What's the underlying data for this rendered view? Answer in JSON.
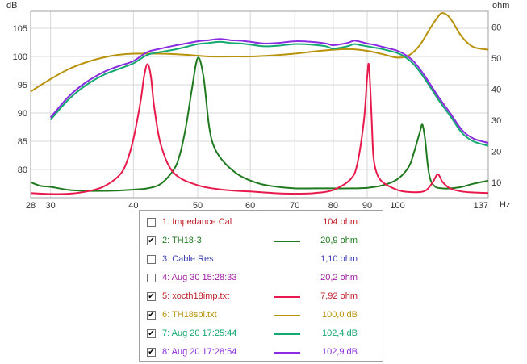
{
  "chart_data": {
    "type": "line",
    "x_scale": "log",
    "xlim": [
      28,
      137
    ],
    "ylim_left": [
      75,
      108
    ],
    "ylim_right": [
      5,
      65
    ],
    "left_unit": "dB",
    "right_unit": "ohm",
    "x_unit": "Hz",
    "x_ticks": [
      {
        "value": 28,
        "label": "28"
      },
      {
        "value": 30,
        "label": "30"
      },
      {
        "value": 40,
        "label": "40"
      },
      {
        "value": 50,
        "label": "50"
      },
      {
        "value": 60,
        "label": "60"
      },
      {
        "value": 70,
        "label": "70"
      },
      {
        "value": 80,
        "label": "80"
      },
      {
        "value": 90,
        "label": "90"
      },
      {
        "value": 100,
        "label": "100"
      },
      {
        "value": 137,
        "label": "137"
      }
    ],
    "y_ticks_left": [
      80,
      85,
      90,
      95,
      100,
      105
    ],
    "y_ticks_right": [
      10,
      20,
      30,
      40,
      50,
      60
    ],
    "grid": true,
    "series": [
      {
        "name": "TH18-3",
        "axis": "right",
        "color": "#1f7a1f",
        "x": [
          28,
          29,
          30,
          32,
          34,
          36,
          38,
          40,
          42,
          44,
          46,
          47,
          48,
          49,
          50,
          51,
          52,
          53,
          55,
          58,
          62,
          66,
          70,
          75,
          80,
          85,
          90,
          95,
          100,
          104,
          106,
          108,
          109,
          110,
          111,
          112,
          114,
          117,
          120,
          125,
          130,
          137
        ],
        "y": [
          10,
          8.8,
          8.5,
          7.5,
          7.2,
          7.2,
          7.3,
          7.6,
          8,
          9.5,
          14,
          19,
          28,
          40,
          50,
          44,
          28,
          21,
          16,
          12,
          9.5,
          8.5,
          8,
          8,
          8,
          8,
          8.2,
          9,
          11,
          15,
          20,
          26,
          28.5,
          24,
          16,
          11,
          8.5,
          8,
          8,
          8.5,
          9.5,
          10.5
        ]
      },
      {
        "name": "xocth18imp.txt",
        "axis": "right",
        "color": "#e8194b",
        "x": [
          28,
          30,
          32,
          34,
          36,
          38,
          39,
          40,
          41,
          41.5,
          42,
          42.5,
          43,
          44,
          46,
          50,
          55,
          60,
          65,
          70,
          75,
          80,
          85,
          87,
          89,
          90,
          90.5,
          91,
          91.5,
          92,
          93,
          95,
          100,
          105,
          110,
          113,
          115,
          117,
          120,
          125,
          130,
          137
        ],
        "y": [
          6.5,
          6.2,
          6.3,
          7,
          8.5,
          12,
          16,
          24,
          36,
          44,
          48,
          44,
          34,
          22,
          13,
          9,
          7.5,
          7,
          6.5,
          6.3,
          6.5,
          7.5,
          11,
          16,
          30,
          44,
          48,
          40,
          28,
          18,
          13,
          10,
          7.5,
          6.8,
          7.2,
          10,
          12.5,
          10,
          8,
          7,
          6.7,
          6.5
        ]
      },
      {
        "name": "TH18spl.txt",
        "axis": "left",
        "color": "#b8920a",
        "x": [
          28,
          30,
          32,
          34,
          36,
          38,
          40,
          44,
          48,
          52,
          56,
          60,
          65,
          70,
          75,
          80,
          85,
          90,
          95,
          100,
          104,
          108,
          112,
          115,
          117,
          120,
          125,
          130,
          137
        ],
        "y": [
          93.8,
          96,
          97.8,
          99,
          99.8,
          100.3,
          100.5,
          100.5,
          100.3,
          100,
          100,
          100,
          100.2,
          100.5,
          100.9,
          101.2,
          101.3,
          101,
          100.4,
          99.8,
          100.2,
          102,
          105,
          107,
          107.7,
          106.8,
          103.5,
          101.7,
          101.2
        ]
      },
      {
        "name": "Aug 20 17:25:44",
        "axis": "left",
        "color": "#15a870",
        "x": [
          30,
          32,
          34,
          36,
          38,
          40,
          42,
          44,
          46,
          48,
          50,
          52,
          54,
          56,
          58,
          60,
          63,
          66,
          70,
          74,
          78,
          80,
          84,
          86,
          88,
          90,
          92,
          95,
          100,
          103,
          106,
          110,
          115,
          120,
          125,
          130,
          137
        ],
        "y": [
          88.8,
          92.5,
          95,
          96.7,
          97.8,
          98.8,
          100.3,
          100.8,
          101.2,
          101.7,
          102.2,
          102.4,
          102.6,
          102.4,
          102.3,
          102.1,
          101.8,
          101.9,
          102.2,
          102.1,
          101.8,
          101.4,
          101.8,
          102.2,
          102,
          101.8,
          101.6,
          101.3,
          100.6,
          99.8,
          98.5,
          96,
          92.5,
          89.5,
          86.5,
          85,
          84.2
        ]
      },
      {
        "name": "Aug 20 17:28:54",
        "axis": "left",
        "color": "#8a2be2",
        "x": [
          30,
          32,
          34,
          36,
          38,
          40,
          42,
          44,
          46,
          48,
          50,
          52,
          54,
          56,
          58,
          60,
          63,
          66,
          70,
          74,
          78,
          80,
          84,
          86,
          88,
          90,
          92,
          95,
          100,
          103,
          106,
          110,
          115,
          120,
          125,
          130,
          137
        ],
        "y": [
          89.2,
          93,
          95.5,
          97.2,
          98.3,
          99.2,
          100.8,
          101.4,
          101.9,
          102.3,
          102.7,
          102.9,
          103.1,
          102.9,
          102.8,
          102.6,
          102.3,
          102.4,
          102.7,
          102.6,
          102.3,
          102,
          102.4,
          102.8,
          102.6,
          102.3,
          102.1,
          101.7,
          101,
          100.2,
          99,
          96.5,
          93,
          90,
          87,
          85.5,
          84.7
        ]
      }
    ]
  },
  "legend": {
    "items": [
      {
        "label": "1: Impedance Cal",
        "checked": false,
        "value": "104 ohm",
        "color": "#c0202a",
        "line": null
      },
      {
        "label": "2: TH18-3",
        "checked": true,
        "value": "20,9 ohm",
        "color": "#1f7a1f",
        "line": "#1f7a1f"
      },
      {
        "label": "3: Cable Res",
        "checked": false,
        "value": "1,10 ohm",
        "color": "#3d40b0",
        "line": null
      },
      {
        "label": "4: Aug 30 15:28:33",
        "checked": false,
        "value": "20,2 ohm",
        "color": "#a020a0",
        "line": null
      },
      {
        "label": "5: xocth18imp.txt",
        "checked": true,
        "value": "7,92 ohm",
        "color": "#c0202a",
        "line": "#e8194b"
      },
      {
        "label": "6: TH18spl.txt",
        "checked": true,
        "value": "100,0 dB",
        "color": "#b8920a",
        "line": "#b8920a"
      },
      {
        "label": "7: Aug 20 17:25:44",
        "checked": true,
        "value": "102,4 dB",
        "color": "#15a870",
        "line": "#15a870"
      },
      {
        "label": "8: Aug 20 17:28:54",
        "checked": true,
        "value": "102,9 dB",
        "color": "#8a2be2",
        "line": "#8a2be2"
      }
    ]
  }
}
